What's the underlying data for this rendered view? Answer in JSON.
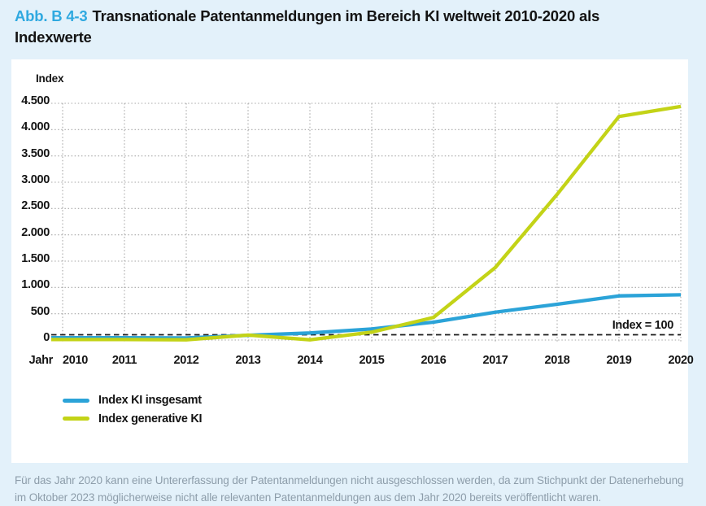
{
  "figure": {
    "label": "Abb. B 4-3",
    "title": "Transnationale Patentanmeldungen im Bereich KI weltweit 2010-2020 als Indexwerte"
  },
  "chart_data": {
    "type": "line",
    "x": [
      2010,
      2011,
      2012,
      2013,
      2014,
      2015,
      2016,
      2017,
      2018,
      2019,
      2020
    ],
    "x_label": "Jahr",
    "y_label": "Index",
    "ylim": [
      0,
      4500
    ],
    "y_tick_step": 500,
    "y_tick_labels": [
      "0",
      "500",
      "1.000",
      "1.500",
      "2.000",
      "2.500",
      "3.000",
      "3.500",
      "4.000",
      "4.500"
    ],
    "grid": "dotted horizontal and vertical gridlines",
    "legend_position": "bottom-left",
    "reference_line": {
      "value": 100,
      "label": "Index = 100",
      "style": "black dashed"
    },
    "series": [
      {
        "name": "Index KI insgesamt",
        "color": "#2BA3D8",
        "values": [
          45,
          45,
          40,
          90,
          135,
          210,
          340,
          530,
          680,
          840,
          860
        ]
      },
      {
        "name": "Index generative KI",
        "color": "#C3D317",
        "values": [
          10,
          10,
          5,
          95,
          5,
          150,
          430,
          1380,
          2770,
          4250,
          4440
        ]
      }
    ]
  },
  "footnote": {
    "lines": [
      "Für das Jahr 2020 kann eine Untererfassung der Patentanmeldungen nicht ausgeschlossen werden, da zum Stichpunkt der Datenerhebung",
      "im Oktober 2023 möglicherweise nicht alle relevanten Patentanmeldungen aus dem Jahr 2020 bereits veröffentlicht waren."
    ]
  },
  "colors": {
    "page_background": "#E3F1FA",
    "card_background": "#FFFFFF",
    "figure_label_blue": "#2FA9E0",
    "grid_gray": "#A6A6A6",
    "footnote_gray": "#8D9DAA"
  }
}
